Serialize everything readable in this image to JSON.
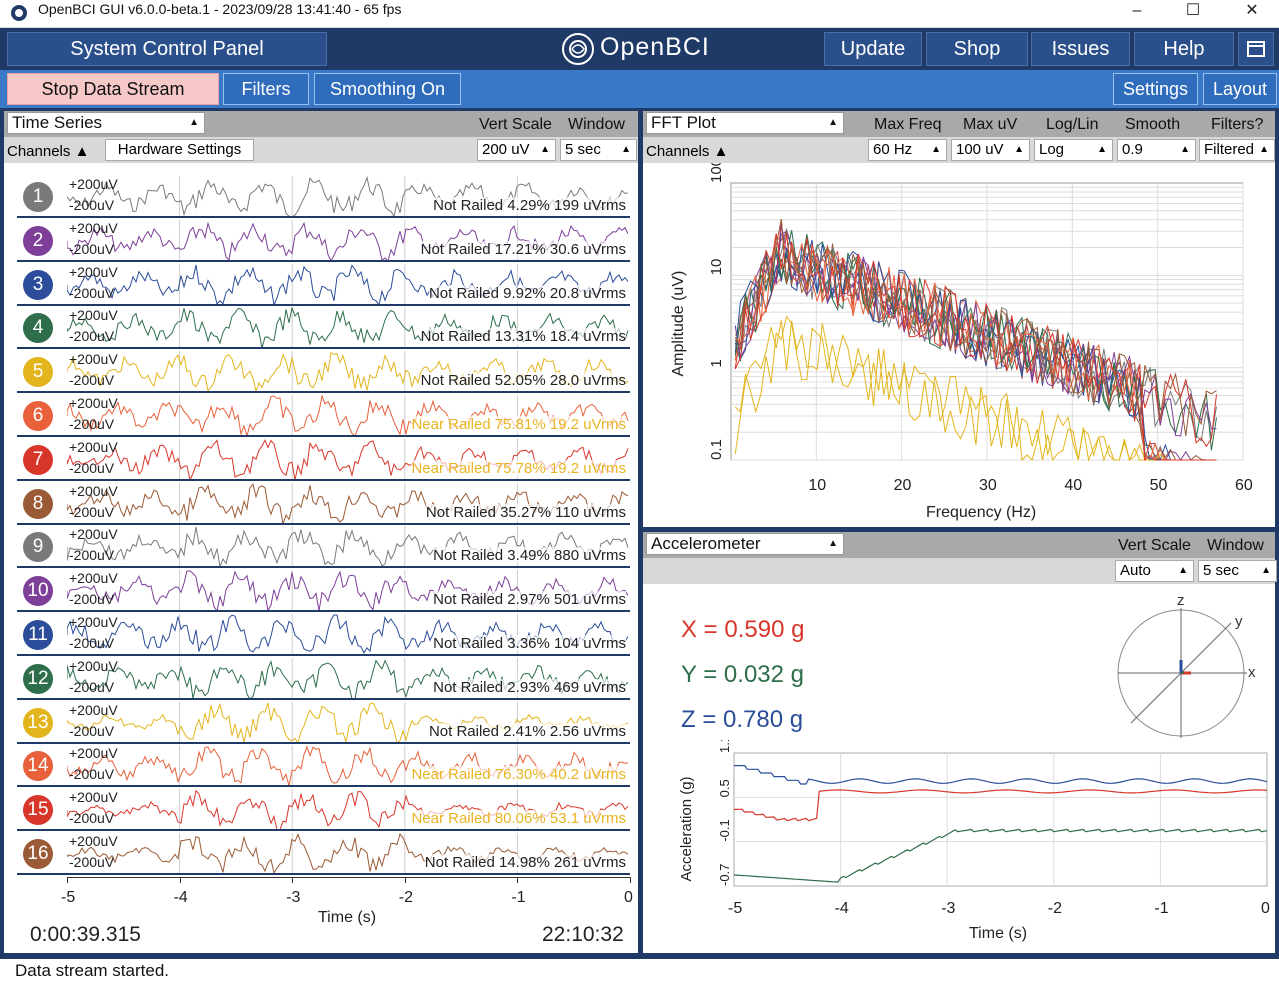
{
  "window": {
    "title": "OpenBCI GUI v6.0.0-beta.1 - 2023/09/28 13:41:40 - 65 fps"
  },
  "topbar": {
    "system_control": "System Control Panel",
    "brand": "OpenBCI",
    "update": "Update",
    "shop": "Shop",
    "issues": "Issues",
    "help": "Help"
  },
  "secbar": {
    "stop": "Stop Data Stream",
    "filters": "Filters",
    "smoothing": "Smoothing On",
    "settings": "Settings",
    "layout": "Layout"
  },
  "timeseries": {
    "widget": "Time Series",
    "vert_scale_label": "Vert Scale",
    "window_label": "Window",
    "channels_label": "Channels",
    "hw_settings": "Hardware Settings",
    "vert_scale": "200 uV",
    "window": "5 sec",
    "plus_label": "+200uV",
    "minus_label": "-200uV",
    "xlabel": "Time (s)",
    "xticks": [
      "-5",
      "-4",
      "-3",
      "-2",
      "-1",
      "0"
    ],
    "elapsed": "0:00:39.315",
    "clock": "22:10:32",
    "channels": [
      {
        "n": "1",
        "color": "#7a7a7a",
        "status": "Not Railed 4.29% 199 uVrms",
        "warn": false
      },
      {
        "n": "2",
        "color": "#7d3f98",
        "status": "Not Railed 17.21% 30.6 uVrms",
        "warn": false
      },
      {
        "n": "3",
        "color": "#2b4d9a",
        "status": "Not Railed 9.92% 20.8 uVrms",
        "warn": false
      },
      {
        "n": "4",
        "color": "#2e6e4a",
        "status": "Not Railed 13.31% 18.4 uVrms",
        "warn": false
      },
      {
        "n": "5",
        "color": "#e3b51d",
        "status": "Not Railed 52.05% 28.0 uVrms",
        "warn": false
      },
      {
        "n": "6",
        "color": "#e8613a",
        "status": "Near Railed 75.81% 19.2 uVrms",
        "warn": true
      },
      {
        "n": "7",
        "color": "#d9362b",
        "status": "Near Railed 75.78% 19.2 uVrms",
        "warn": true
      },
      {
        "n": "8",
        "color": "#9a5a35",
        "status": "Not Railed 35.27% 110 uVrms",
        "warn": false
      },
      {
        "n": "9",
        "color": "#7a7a7a",
        "status": "Not Railed 3.49% 880 uVrms",
        "warn": false
      },
      {
        "n": "10",
        "color": "#7d3f98",
        "status": "Not Railed 2.97% 501 uVrms",
        "warn": false
      },
      {
        "n": "11",
        "color": "#2b4d9a",
        "status": "Not Railed 3.36% 104 uVrms",
        "warn": false
      },
      {
        "n": "12",
        "color": "#2e6e4a",
        "status": "Not Railed 2.93% 469 uVrms",
        "warn": false
      },
      {
        "n": "13",
        "color": "#e3b51d",
        "status": "Not Railed 2.41% 2.56 uVrms",
        "warn": false
      },
      {
        "n": "14",
        "color": "#e8613a",
        "status": "Near Railed 76.30% 40.2 uVrms",
        "warn": true
      },
      {
        "n": "15",
        "color": "#d9362b",
        "status": "Near Railed 80.06% 53.1 uVrms",
        "warn": true
      },
      {
        "n": "16",
        "color": "#9a5a35",
        "status": "Not Railed 14.98% 261 uVrms",
        "warn": false
      }
    ]
  },
  "fft": {
    "widget": "FFT Plot",
    "max_freq_label": "Max Freq",
    "max_uv_label": "Max uV",
    "loglin_label": "Log/Lin",
    "smooth_label": "Smooth",
    "filters_label": "Filters?",
    "channels_label": "Channels",
    "max_freq": "60 Hz",
    "max_uv": "100 uV",
    "loglin": "Log",
    "smooth": "0.9",
    "filtered": "Filtered",
    "xlabel": "Frequency (Hz)",
    "ylabel": "Amplitude (uV)",
    "xticks": [
      "10",
      "20",
      "30",
      "40",
      "50",
      "60"
    ],
    "yticks": [
      "100",
      "10",
      "1",
      "0.1"
    ]
  },
  "accel": {
    "widget": "Accelerometer",
    "vert_scale_label": "Vert Scale",
    "window_label": "Window",
    "vert_scale": "Auto",
    "window": "5 sec",
    "x_text": "X = 0.590 g",
    "y_text": "Y = 0.032 g",
    "z_text": "Z = 0.780 g",
    "x_color": "#d9362b",
    "y_color": "#2e6e4a",
    "z_color": "#2b4d9a",
    "axis_z": "z",
    "axis_y": "y",
    "axis_x": "x",
    "xlabel": "Time (s)",
    "ylabel": "Acceleration (g)",
    "xticks": [
      "-5",
      "-4",
      "-3",
      "-2",
      "-1",
      "0"
    ],
    "yticks": [
      "1.1",
      "0.5",
      "-0.1",
      "-0.7"
    ]
  },
  "status": {
    "message": "Data stream started."
  }
}
